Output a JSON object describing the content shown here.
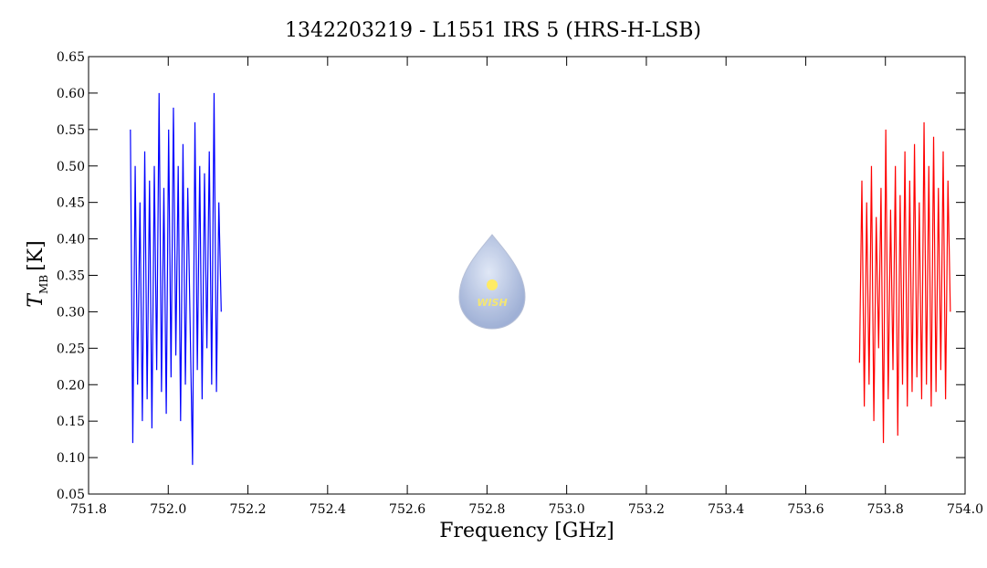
{
  "chart_data": {
    "type": "line",
    "title": "1342203219 - L1551 IRS 5 (HRS-H-LSB)",
    "xlabel": "Frequency [GHz]",
    "ylabel": {
      "symbol": "T",
      "subscript": "MB",
      "unit": "[K]"
    },
    "logo_text": "WISH",
    "xlim": [
      751.8,
      754.0
    ],
    "ylim": [
      0.05,
      0.65
    ],
    "xticks": [
      751.8,
      {
        "value": 752.0,
        "label": "752.0"
      },
      752.2,
      752.4,
      752.6,
      752.8,
      {
        "value": 753.0,
        "label": "753.0"
      },
      753.2,
      753.4,
      753.6,
      753.8,
      {
        "value": 754.0,
        "label": "754.0"
      }
    ],
    "yticks": [
      0.05,
      {
        "value": 0.1,
        "label": "0.10"
      },
      0.15,
      {
        "value": 0.2,
        "label": "0.20"
      },
      0.25,
      {
        "value": 0.3,
        "label": "0.30"
      },
      0.35,
      {
        "value": 0.4,
        "label": "0.40"
      },
      0.45,
      {
        "value": 0.5,
        "label": "0.50"
      },
      0.55,
      {
        "value": 0.6,
        "label": "0.60"
      },
      0.65
    ],
    "series": [
      {
        "color": "#0000ff",
        "x": [
          751.905,
          751.911,
          751.917,
          751.923,
          751.929,
          751.935,
          751.941,
          751.947,
          751.953,
          751.959,
          751.965,
          751.971,
          751.977,
          751.983,
          751.989,
          751.995,
          752.001,
          752.007,
          752.013,
          752.019,
          752.025,
          752.031,
          752.037,
          752.043,
          752.049,
          752.055,
          752.061,
          752.067,
          752.073,
          752.079,
          752.085,
          752.091,
          752.097,
          752.103,
          752.109,
          752.115,
          752.121,
          752.127,
          752.133
        ],
        "values": [
          0.55,
          0.12,
          0.5,
          0.2,
          0.45,
          0.15,
          0.52,
          0.18,
          0.48,
          0.14,
          0.5,
          0.22,
          0.6,
          0.19,
          0.47,
          0.16,
          0.55,
          0.21,
          0.58,
          0.24,
          0.5,
          0.15,
          0.53,
          0.2,
          0.47,
          0.28,
          0.09,
          0.56,
          0.22,
          0.5,
          0.18,
          0.49,
          0.25,
          0.52,
          0.2,
          0.6,
          0.19,
          0.45,
          0.3
        ]
      },
      {
        "color": "#ff0000",
        "x": [
          753.735,
          753.741,
          753.747,
          753.753,
          753.759,
          753.765,
          753.771,
          753.777,
          753.783,
          753.789,
          753.795,
          753.801,
          753.807,
          753.813,
          753.819,
          753.825,
          753.831,
          753.837,
          753.843,
          753.849,
          753.855,
          753.861,
          753.867,
          753.873,
          753.879,
          753.885,
          753.891,
          753.897,
          753.903,
          753.909,
          753.915,
          753.921,
          753.927,
          753.933,
          753.939,
          753.945,
          753.951,
          753.957,
          753.963
        ],
        "values": [
          0.23,
          0.48,
          0.17,
          0.45,
          0.2,
          0.5,
          0.15,
          0.43,
          0.25,
          0.47,
          0.12,
          0.55,
          0.18,
          0.44,
          0.22,
          0.5,
          0.13,
          0.46,
          0.2,
          0.52,
          0.17,
          0.48,
          0.19,
          0.53,
          0.21,
          0.45,
          0.18,
          0.56,
          0.2,
          0.5,
          0.17,
          0.54,
          0.19,
          0.47,
          0.22,
          0.52,
          0.18,
          0.48,
          0.3
        ]
      }
    ]
  }
}
